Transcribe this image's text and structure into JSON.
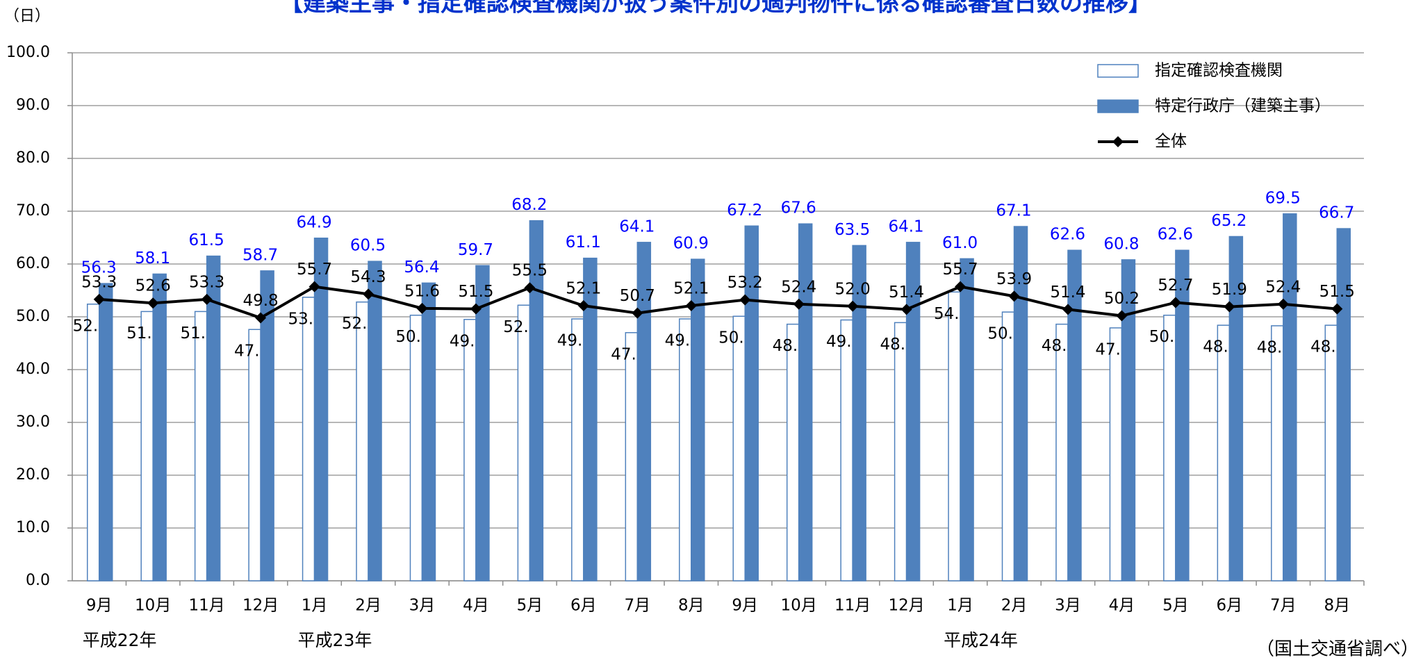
{
  "chart_data": {
    "type": "bar-line",
    "title": "【建築主事・指定確認検査機関が扱う案件別の適判物件に係る確認審査日数の推移】",
    "y_unit": "（日）",
    "source": "（国土交通省調べ）",
    "categories": [
      "9月",
      "10月",
      "11月",
      "12月",
      "1月",
      "2月",
      "3月",
      "4月",
      "5月",
      "6月",
      "7月",
      "8月",
      "9月",
      "10月",
      "11月",
      "12月",
      "1月",
      "2月",
      "3月",
      "4月",
      "5月",
      "6月",
      "7月",
      "8月"
    ],
    "year_labels": [
      "平成22年",
      null,
      null,
      null,
      "平成23年",
      null,
      null,
      null,
      null,
      null,
      null,
      null,
      null,
      null,
      null,
      null,
      "平成24年",
      null,
      null,
      null,
      null,
      null,
      null,
      null
    ],
    "ylim": [
      0,
      100
    ],
    "yticks": [
      {
        "value": 0,
        "label": "0.0"
      },
      {
        "value": 10,
        "label": "10.0"
      },
      {
        "value": 20,
        "label": "20.0"
      },
      {
        "value": 30,
        "label": "30.0"
      },
      {
        "value": 40,
        "label": "40.0"
      },
      {
        "value": 50,
        "label": "50.0"
      },
      {
        "value": 60,
        "label": "60.0"
      },
      {
        "value": 70,
        "label": "70.0"
      },
      {
        "value": 80,
        "label": "80.0"
      },
      {
        "value": 90,
        "label": "90.0"
      },
      {
        "value": 100,
        "label": "100.0"
      }
    ],
    "grid": true,
    "series": [
      {
        "name": "指定確認検査機関",
        "kind": "bar",
        "color": "#4f81bd",
        "fill": "#ffffff",
        "values": [
          52.4,
          51.0,
          51.0,
          47.6,
          53.7,
          52.8,
          50.3,
          49.5,
          52.2,
          49.6,
          47.0,
          49.6,
          50.1,
          48.6,
          49.4,
          48.9,
          54.7,
          50.9,
          48.6,
          47.9,
          50.3,
          48.4,
          48.3,
          48.4
        ],
        "value_labels": [
          "52.4",
          "51.0",
          "51.0",
          "47.6",
          "53.7",
          "52.8",
          "50.3",
          "49.5",
          "52.2",
          "49.6",
          "47.0",
          "49.6",
          "50.1",
          "48.6",
          "49.4",
          "48.9",
          "54.7",
          "50.9",
          "48.6",
          "47.9",
          "50.3",
          "48.4",
          "48.3",
          "48.4"
        ]
      },
      {
        "name": "特定行政庁（建築主事）",
        "kind": "bar",
        "color": "#4f81bd",
        "fill": "#4f81bd",
        "label_color": "#0000ff",
        "values": [
          56.3,
          58.1,
          61.5,
          58.7,
          64.9,
          60.5,
          56.4,
          59.7,
          68.2,
          61.1,
          64.1,
          60.9,
          67.2,
          67.6,
          63.5,
          64.1,
          61.0,
          67.1,
          62.6,
          60.8,
          62.6,
          65.2,
          69.5,
          66.7
        ],
        "value_labels": [
          "56.3",
          "58.1",
          "61.5",
          "58.7",
          "64.9",
          "60.5",
          "56.4",
          "59.7",
          "68.2",
          "61.1",
          "64.1",
          "60.9",
          "67.2",
          "67.6",
          "63.5",
          "64.1",
          "61.0",
          "67.1",
          "62.6",
          "60.8",
          "62.6",
          "65.2",
          "69.5",
          "66.7"
        ]
      },
      {
        "name": "全体",
        "kind": "line",
        "color": "#000000",
        "values": [
          53.3,
          52.6,
          53.3,
          49.8,
          55.7,
          54.3,
          51.6,
          51.5,
          55.5,
          52.1,
          50.7,
          52.1,
          53.2,
          52.4,
          52.0,
          51.4,
          55.7,
          53.9,
          51.4,
          50.2,
          52.7,
          51.9,
          52.4,
          51.5
        ],
        "value_labels": [
          "53.3",
          "52.6",
          "53.3",
          "49.8",
          "55.7",
          "54.3",
          "51.6",
          "51.5",
          "55.5",
          "52.1",
          "50.7",
          "52.1",
          "53.2",
          "52.4",
          "52.0",
          "51.4",
          "55.7",
          "53.9",
          "51.4",
          "50.2",
          "52.7",
          "51.9",
          "52.4",
          "51.5"
        ]
      }
    ]
  }
}
